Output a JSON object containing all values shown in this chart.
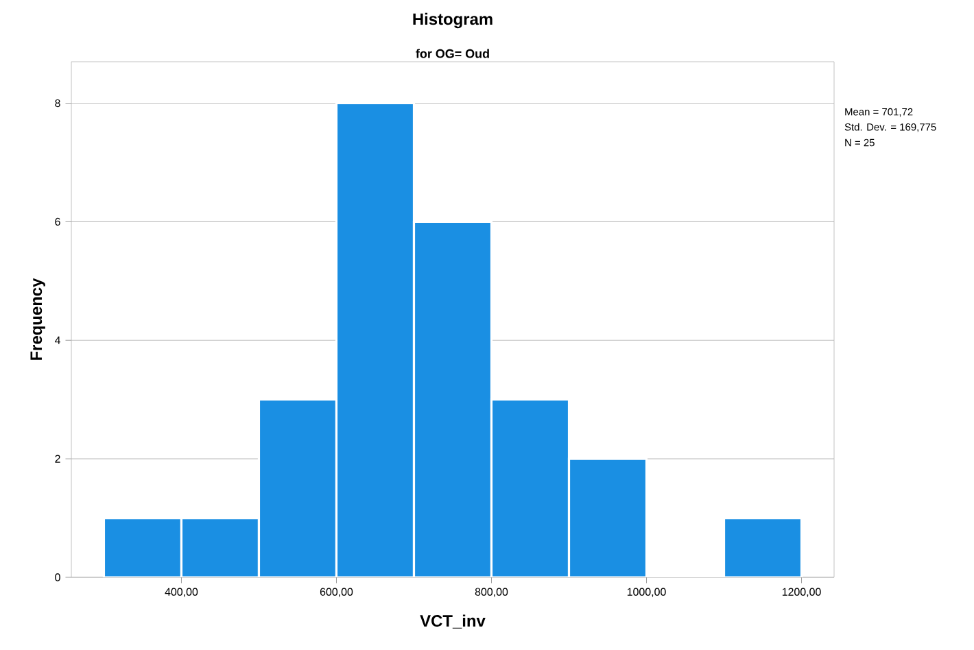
{
  "chart_data": {
    "type": "histogram",
    "title": "Histogram",
    "subtitle": "for OG= Oud",
    "xlabel": "VCT_inv",
    "ylabel": "Frequency",
    "bins": [
      300,
      400,
      500,
      600,
      700,
      800,
      900,
      1000,
      1100,
      1200
    ],
    "values": [
      1,
      1,
      3,
      8,
      6,
      3,
      2,
      0,
      1
    ],
    "color": "#1a8fe3",
    "xlim": [
      258,
      1242
    ],
    "ylim": [
      0,
      8.7
    ],
    "xticks": [
      {
        "value": 400,
        "label": "400,00"
      },
      {
        "value": 600,
        "label": "600,00"
      },
      {
        "value": 800,
        "label": "800,00"
      },
      {
        "value": 1000,
        "label": "1000,00"
      },
      {
        "value": 1200,
        "label": "1200,00"
      }
    ],
    "yticks": [
      0,
      2,
      4,
      6,
      8
    ],
    "grid": "y",
    "annotations": [
      "Mean = 701,72",
      "Std. Dev. = 169,775",
      "N = 25"
    ]
  }
}
